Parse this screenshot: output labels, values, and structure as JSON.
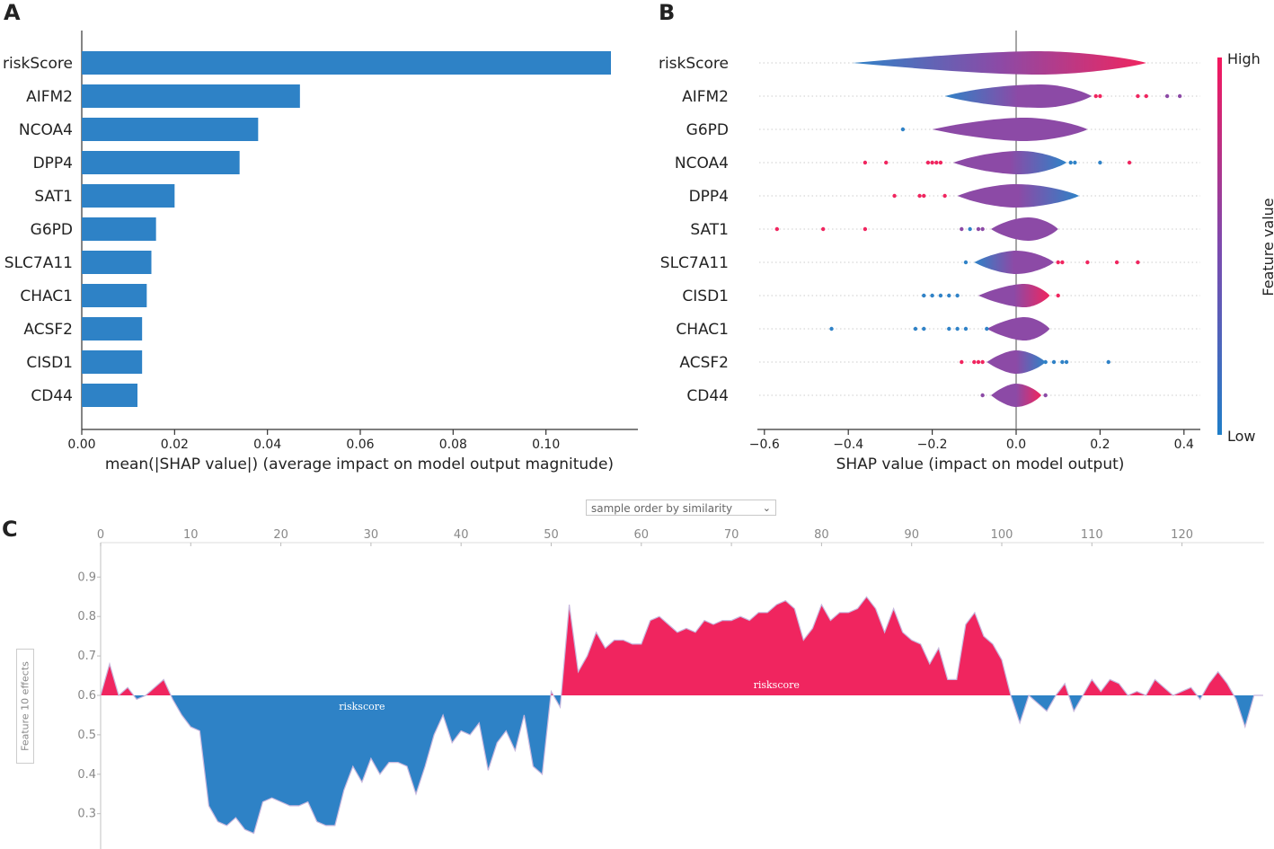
{
  "panel_labels": {
    "a": "A",
    "b": "B",
    "c": "C"
  },
  "colors": {
    "blue": "#2f82c7",
    "red": "#f0255f",
    "purple": "#8c4aa6",
    "bar": "#2e82c6"
  },
  "chart_data": [
    {
      "id": "A",
      "type": "bar",
      "orientation": "horizontal",
      "categories": [
        "riskScore",
        "AIFM2",
        "NCOA4",
        "DPP4",
        "SAT1",
        "G6PD",
        "SLC7A11",
        "CHAC1",
        "ACSF2",
        "CISD1",
        "CD44"
      ],
      "values": [
        0.114,
        0.047,
        0.038,
        0.034,
        0.02,
        0.016,
        0.015,
        0.014,
        0.013,
        0.013,
        0.012
      ],
      "xlabel": "mean(|SHAP value|) (average impact on model output magnitude)",
      "xlim": [
        0,
        0.12
      ],
      "xticks": [
        0.0,
        0.02,
        0.04,
        0.06,
        0.08,
        0.1
      ],
      "xtick_labels": [
        "0.00",
        "0.02",
        "0.04",
        "0.06",
        "0.08",
        "0.10"
      ]
    },
    {
      "id": "B",
      "type": "violin",
      "features": [
        "riskScore",
        "AIFM2",
        "G6PD",
        "NCOA4",
        "DPP4",
        "SAT1",
        "SLC7A11",
        "CISD1",
        "CHAC1",
        "ACSF2",
        "CD44"
      ],
      "ranges": [
        [
          -0.39,
          0.31
        ],
        [
          -0.17,
          0.18
        ],
        [
          -0.2,
          0.17
        ],
        [
          -0.15,
          0.12
        ],
        [
          -0.14,
          0.15
        ],
        [
          -0.06,
          0.1
        ],
        [
          -0.1,
          0.09
        ],
        [
          -0.09,
          0.08
        ],
        [
          -0.07,
          0.08
        ],
        [
          -0.07,
          0.07
        ],
        [
          -0.06,
          0.06
        ]
      ],
      "peaks": [
        0.05,
        0.06,
        0.02,
        0.01,
        0.0,
        0.03,
        0.0,
        0.02,
        0.02,
        0.0,
        0.0
      ],
      "widths": [
        0.5,
        0.75,
        0.6,
        0.7,
        0.7,
        0.7,
        0.65,
        0.6,
        0.6,
        0.6,
        0.6
      ],
      "low_side": [
        "blue",
        "blue",
        "purple",
        "purple",
        "purple",
        "purple",
        "blue",
        "purple",
        "purple",
        "purple",
        "purple"
      ],
      "high_side": [
        "red",
        "purple",
        "purple",
        "blue",
        "blue",
        "purple",
        "purple",
        "red",
        "purple",
        "blue",
        "red"
      ],
      "outliers": [
        [],
        [
          [
            0.19,
            "red"
          ],
          [
            0.2,
            "red"
          ],
          [
            0.29,
            "red"
          ],
          [
            0.31,
            "red"
          ],
          [
            0.36,
            "purple"
          ],
          [
            0.39,
            "purple"
          ]
        ],
        [
          [
            -0.27,
            "blue"
          ]
        ],
        [
          [
            -0.36,
            "red"
          ],
          [
            -0.31,
            "red"
          ],
          [
            -0.21,
            "red"
          ],
          [
            -0.2,
            "red"
          ],
          [
            -0.19,
            "red"
          ],
          [
            -0.18,
            "red"
          ],
          [
            0.13,
            "blue"
          ],
          [
            0.14,
            "blue"
          ],
          [
            0.2,
            "blue"
          ],
          [
            0.27,
            "red"
          ]
        ],
        [
          [
            -0.29,
            "red"
          ],
          [
            -0.23,
            "red"
          ],
          [
            -0.22,
            "red"
          ],
          [
            -0.17,
            "red"
          ]
        ],
        [
          [
            -0.57,
            "red"
          ],
          [
            -0.46,
            "red"
          ],
          [
            -0.36,
            "red"
          ],
          [
            -0.13,
            "purple"
          ],
          [
            -0.11,
            "blue"
          ],
          [
            -0.09,
            "purple"
          ],
          [
            -0.08,
            "purple"
          ]
        ],
        [
          [
            -0.12,
            "blue"
          ],
          [
            0.1,
            "red"
          ],
          [
            0.11,
            "red"
          ],
          [
            0.17,
            "red"
          ],
          [
            0.24,
            "red"
          ],
          [
            0.29,
            "red"
          ]
        ],
        [
          [
            -0.22,
            "blue"
          ],
          [
            -0.2,
            "blue"
          ],
          [
            -0.18,
            "blue"
          ],
          [
            -0.16,
            "blue"
          ],
          [
            -0.14,
            "blue"
          ],
          [
            0.1,
            "red"
          ]
        ],
        [
          [
            -0.44,
            "blue"
          ],
          [
            -0.24,
            "blue"
          ],
          [
            -0.22,
            "blue"
          ],
          [
            -0.16,
            "blue"
          ],
          [
            -0.14,
            "blue"
          ],
          [
            -0.12,
            "blue"
          ],
          [
            -0.07,
            "blue"
          ]
        ],
        [
          [
            -0.13,
            "red"
          ],
          [
            -0.1,
            "red"
          ],
          [
            -0.09,
            "red"
          ],
          [
            -0.08,
            "red"
          ],
          [
            0.07,
            "blue"
          ],
          [
            0.09,
            "blue"
          ],
          [
            0.11,
            "blue"
          ],
          [
            0.12,
            "blue"
          ],
          [
            0.22,
            "blue"
          ]
        ],
        [
          [
            -0.08,
            "purple"
          ],
          [
            0.07,
            "purple"
          ]
        ]
      ],
      "xlabel": "SHAP value (impact on model output)",
      "xlim": [
        -0.62,
        0.44
      ],
      "xticks": [
        -0.6,
        -0.4,
        -0.2,
        0.0,
        0.2,
        0.4
      ],
      "xtick_labels": [
        "−0.6",
        "−0.4",
        "−0.2",
        "0.0",
        "0.2",
        "0.4"
      ],
      "colorbar": {
        "label": "Feature value",
        "high": "High",
        "low": "Low"
      }
    },
    {
      "id": "C",
      "type": "area",
      "title": "",
      "baseline": 0.6,
      "x": [
        0,
        1,
        2,
        3,
        4,
        5,
        6,
        7,
        8,
        9,
        10,
        11,
        12,
        13,
        14,
        15,
        16,
        17,
        18,
        19,
        20,
        21,
        22,
        23,
        24,
        25,
        26,
        27,
        28,
        29,
        30,
        31,
        32,
        33,
        34,
        35,
        36,
        37,
        38,
        39,
        40,
        41,
        42,
        43,
        44,
        45,
        46,
        47,
        48,
        49,
        50,
        51,
        52,
        53,
        54,
        55,
        56,
        57,
        58,
        59,
        60,
        61,
        62,
        63,
        64,
        65,
        66,
        67,
        68,
        69,
        70,
        71,
        72,
        73,
        74,
        75,
        76,
        77,
        78,
        79,
        80,
        81,
        82,
        83,
        84,
        85,
        86,
        87,
        88,
        89,
        90,
        91,
        92,
        93,
        94,
        95,
        96,
        97,
        98,
        99,
        100,
        101,
        102,
        103,
        104,
        105,
        106,
        107,
        108,
        109,
        110,
        111,
        112,
        113,
        114,
        115,
        116,
        117,
        118,
        119,
        120,
        121,
        122,
        123,
        124,
        125,
        126,
        127,
        128,
        129
      ],
      "values": [
        0.6,
        0.68,
        0.6,
        0.62,
        0.59,
        0.6,
        0.62,
        0.64,
        0.59,
        0.55,
        0.52,
        0.51,
        0.32,
        0.28,
        0.27,
        0.29,
        0.26,
        0.25,
        0.33,
        0.34,
        0.33,
        0.32,
        0.32,
        0.33,
        0.28,
        0.27,
        0.27,
        0.36,
        0.42,
        0.38,
        0.44,
        0.4,
        0.43,
        0.43,
        0.42,
        0.35,
        0.42,
        0.5,
        0.55,
        0.48,
        0.51,
        0.5,
        0.53,
        0.41,
        0.48,
        0.51,
        0.46,
        0.55,
        0.42,
        0.4,
        0.61,
        0.57,
        0.83,
        0.66,
        0.7,
        0.76,
        0.72,
        0.74,
        0.74,
        0.73,
        0.73,
        0.79,
        0.8,
        0.78,
        0.76,
        0.77,
        0.76,
        0.79,
        0.78,
        0.79,
        0.79,
        0.8,
        0.79,
        0.81,
        0.81,
        0.83,
        0.84,
        0.82,
        0.74,
        0.77,
        0.83,
        0.79,
        0.81,
        0.81,
        0.82,
        0.85,
        0.82,
        0.76,
        0.82,
        0.76,
        0.74,
        0.73,
        0.68,
        0.72,
        0.64,
        0.64,
        0.78,
        0.81,
        0.75,
        0.73,
        0.69,
        0.6,
        0.53,
        0.6,
        0.58,
        0.56,
        0.6,
        0.63,
        0.56,
        0.6,
        0.64,
        0.61,
        0.64,
        0.63,
        0.6,
        0.61,
        0.6,
        0.64,
        0.62,
        0.6,
        0.61,
        0.62,
        0.59,
        0.63,
        0.66,
        0.63,
        0.59,
        0.52,
        0.6,
        0.6
      ],
      "segment_labels": [
        {
          "text": "riskscore",
          "x": 29,
          "side": "below"
        },
        {
          "text": "riskscore",
          "x": 75,
          "side": "above"
        }
      ],
      "ylim": [
        0.22,
        0.96
      ],
      "yticks": [
        0.3,
        0.4,
        0.5,
        0.6,
        0.7,
        0.8,
        0.9
      ],
      "ytick_labels": [
        "0.3",
        "0.4",
        "0.5",
        "0.6",
        "0.7",
        "0.8",
        "0.9"
      ],
      "xticks": [
        0,
        10,
        20,
        30,
        40,
        50,
        60,
        70,
        80,
        90,
        100,
        110,
        120
      ],
      "xtick_labels": [
        "0",
        "10",
        "20",
        "30",
        "40",
        "50",
        "60",
        "70",
        "80",
        "90",
        "100",
        "110",
        "120"
      ],
      "dropdown_label": "sample order by similarity",
      "side_label": "Feature 10 effects"
    }
  ]
}
